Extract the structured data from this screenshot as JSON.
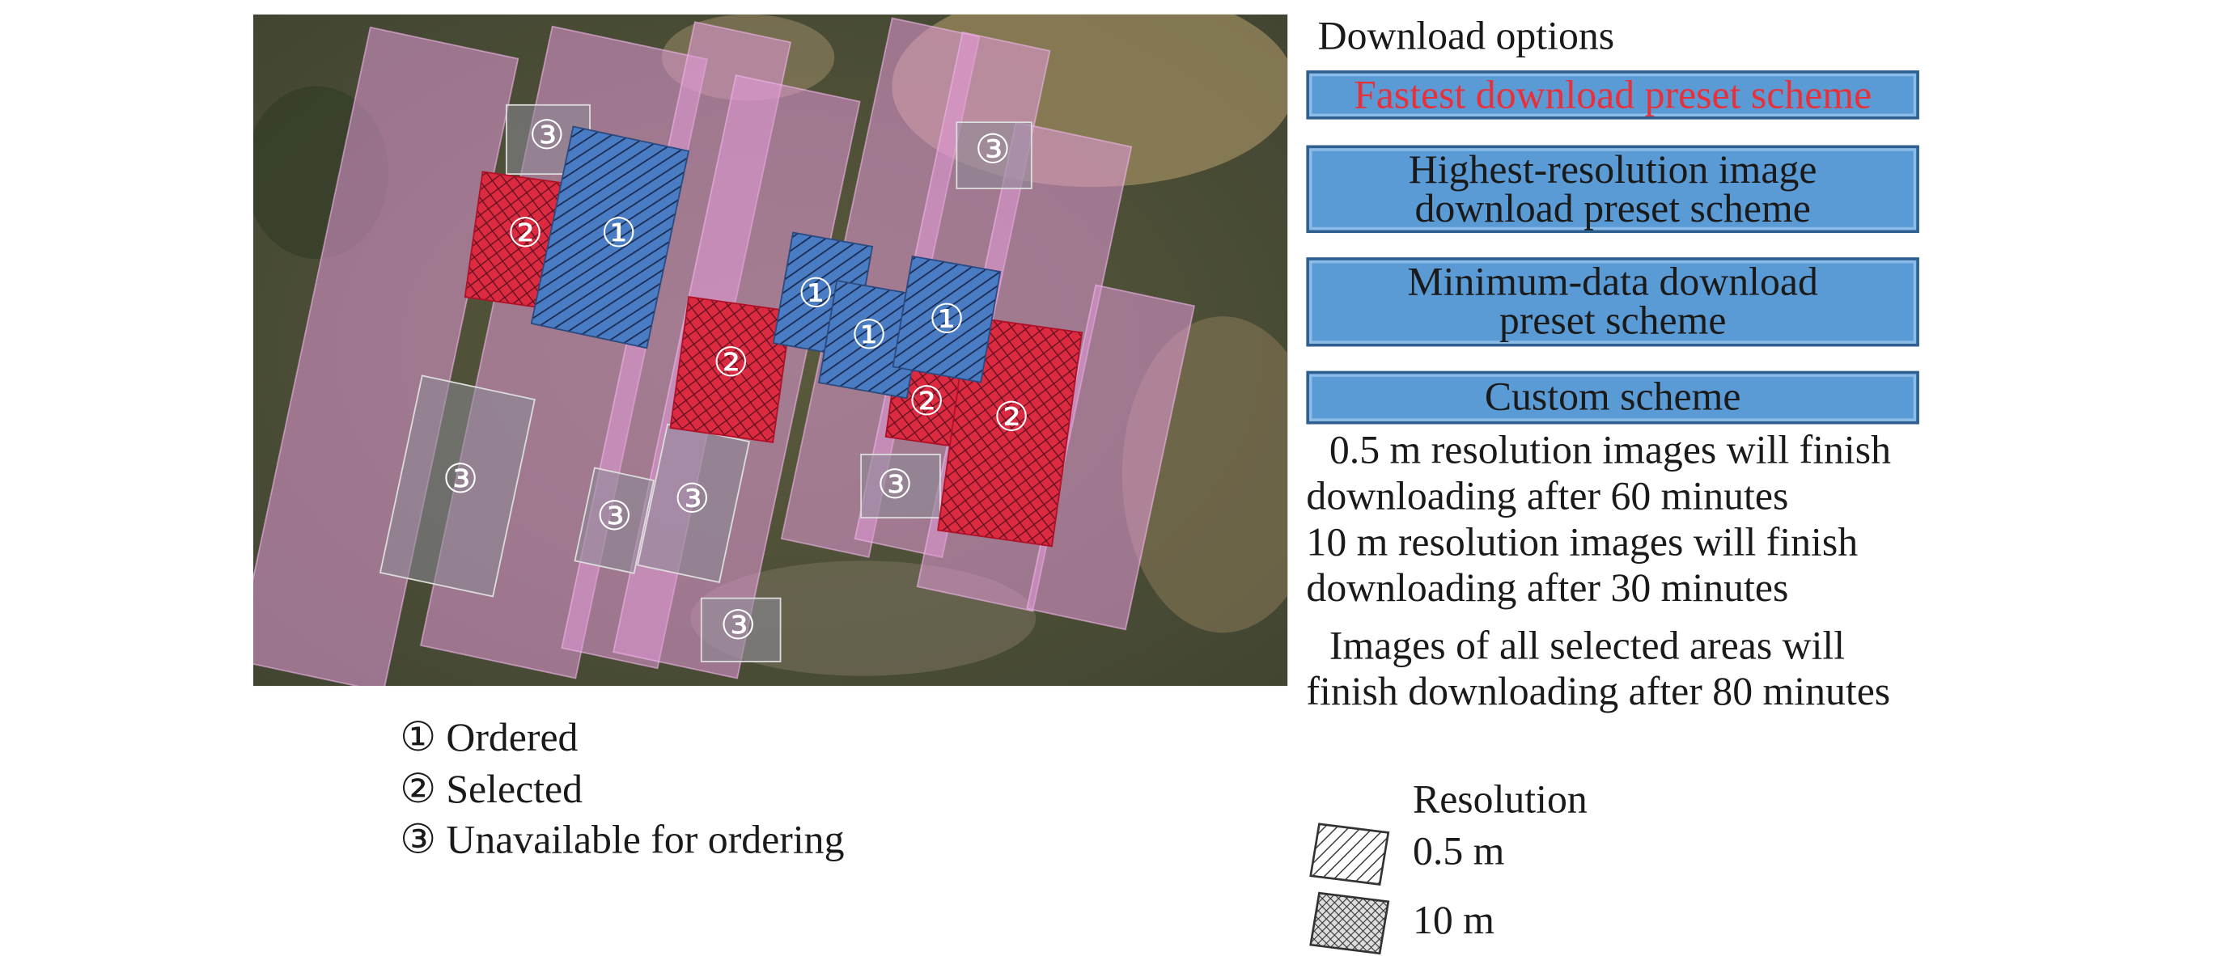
{
  "panel": {
    "title": "Download options",
    "buttons": [
      "Fastest download preset scheme",
      "Highest-resolution image download preset scheme",
      "Minimum-data download preset scheme",
      "Custom scheme"
    ],
    "info": [
      "0.5 m resolution images will finish downloading after 60 minutes",
      "10 m resolution images will finish downloading after 30 minutes",
      "Images of all selected areas will finish downloading after 80 minutes"
    ]
  },
  "map": {
    "markers": [
      "③",
      "②",
      "①",
      "②",
      "①",
      "①",
      "①",
      "②",
      "②",
      "③",
      "③",
      "③",
      "③",
      "③",
      "③"
    ]
  },
  "legend": {
    "items": [
      "① Ordered",
      "② Selected",
      "③ Unavailable for ordering"
    ]
  },
  "resolution_legend": {
    "title": "Resolution",
    "items": [
      "0.5 m",
      "10 m"
    ]
  }
}
